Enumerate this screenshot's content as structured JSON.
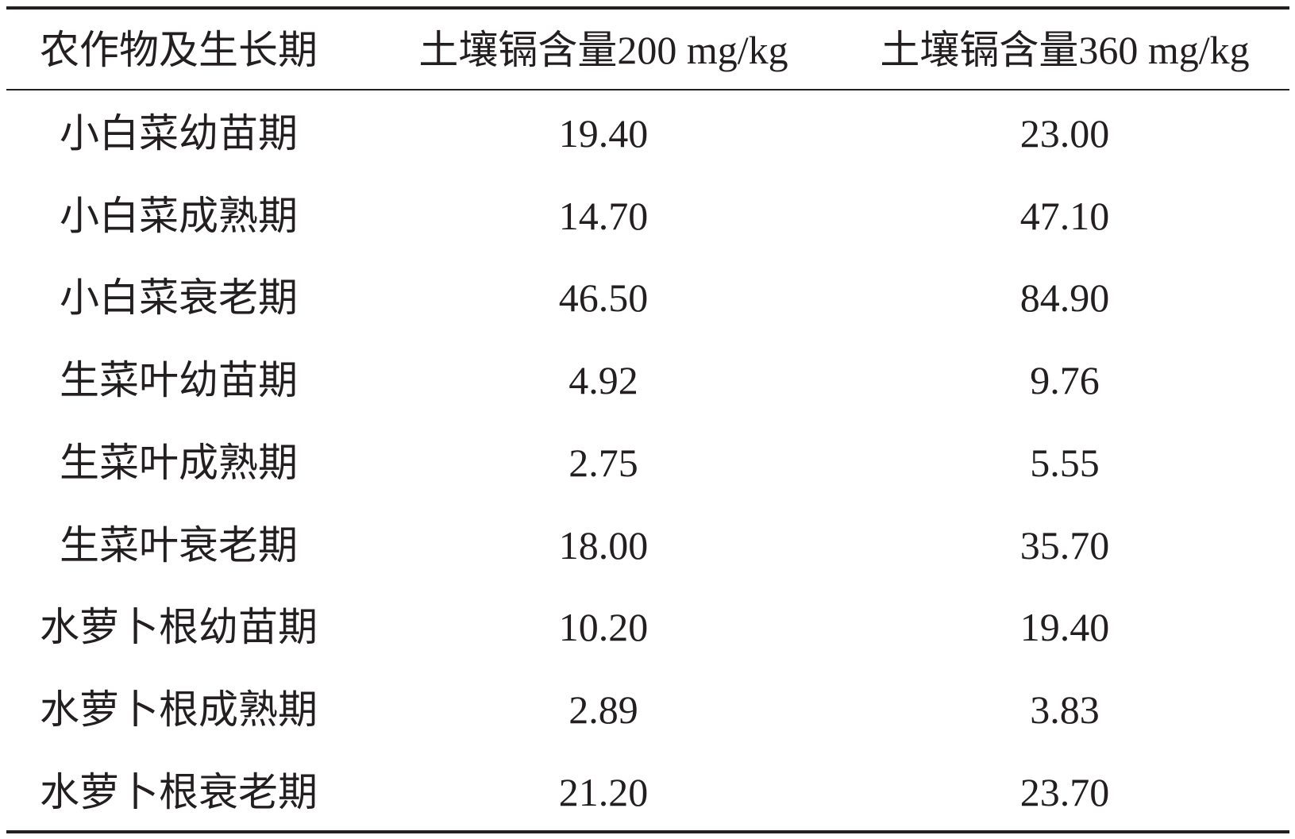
{
  "table": {
    "header": [
      "农作物及生长期",
      "土壤镉含量200 mg/kg",
      "土壤镉含量360 mg/kg"
    ],
    "rows": [
      [
        "小白菜幼苗期",
        "19.40",
        "23.00"
      ],
      [
        "小白菜成熟期",
        "14.70",
        "47.10"
      ],
      [
        "小白菜衰老期",
        "46.50",
        "84.90"
      ],
      [
        "生菜叶幼苗期",
        "4.92",
        "9.76"
      ],
      [
        "生菜叶成熟期",
        "2.75",
        "5.55"
      ],
      [
        "生菜叶衰老期",
        "18.00",
        "35.70"
      ],
      [
        "水萝卜根幼苗期",
        "10.20",
        "19.40"
      ],
      [
        "水萝卜根成熟期",
        "2.89",
        "3.83"
      ],
      [
        "水萝卜根衰老期",
        "21.20",
        "23.70"
      ]
    ]
  }
}
